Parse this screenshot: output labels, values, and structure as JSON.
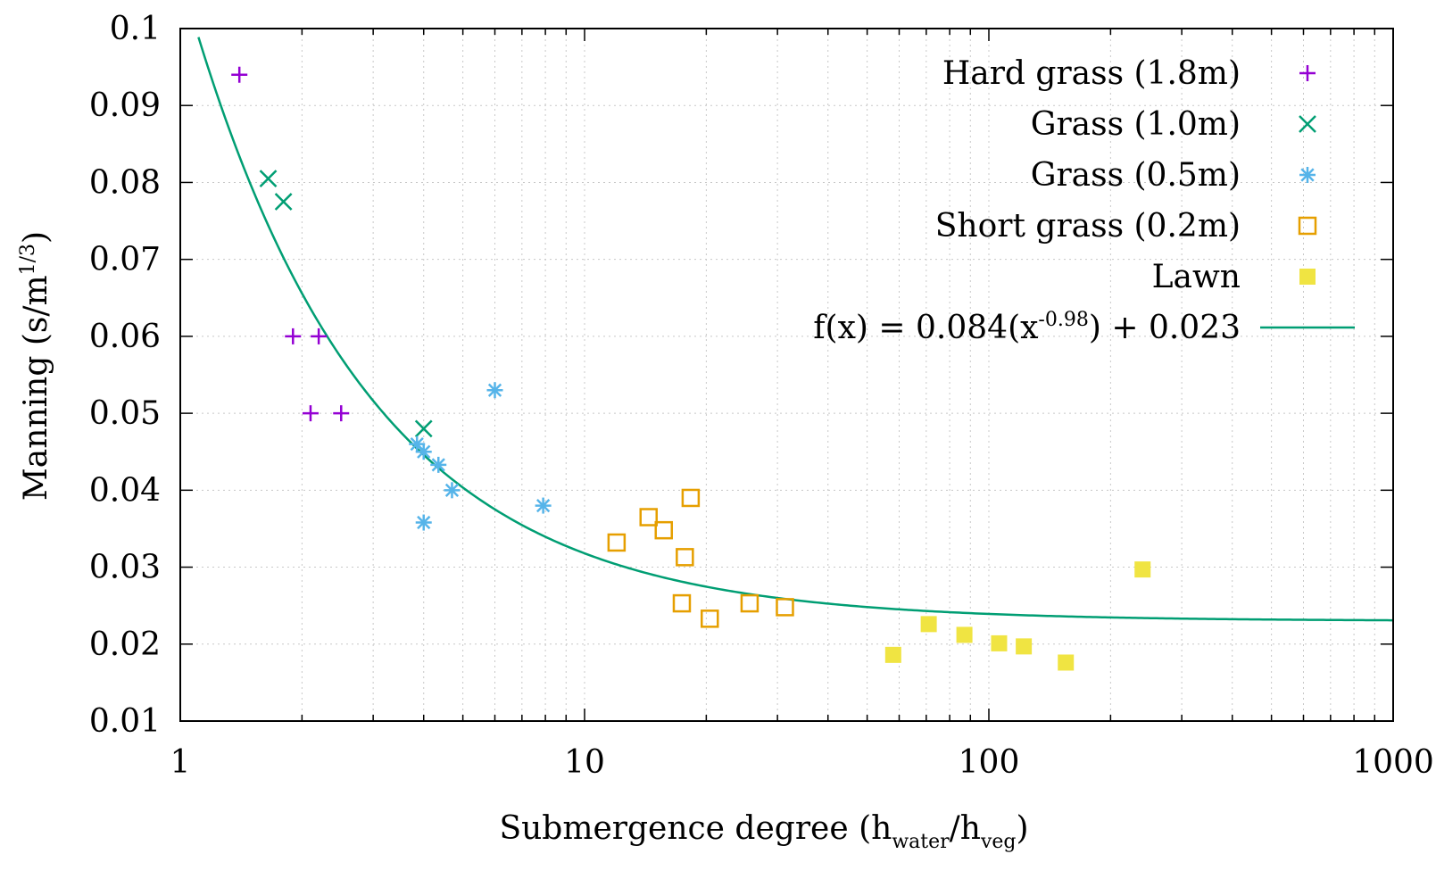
{
  "chart_data": {
    "type": "scatter",
    "title": "",
    "xscale": "log",
    "xlim": [
      1,
      1000
    ],
    "ylim": [
      0.01,
      0.1
    ],
    "xticks": [
      1,
      10,
      100,
      1000
    ],
    "xtick_labels": [
      "1",
      "10",
      "100",
      "1000"
    ],
    "yticks": [
      0.01,
      0.02,
      0.03,
      0.04,
      0.05,
      0.06,
      0.07,
      0.08,
      0.09,
      0.1
    ],
    "ytick_labels": [
      "0.01",
      "0.02",
      "0.03",
      "0.04",
      "0.05",
      "0.06",
      "0.07",
      "0.08",
      "0.09",
      "0.1"
    ],
    "xlabel": {
      "main": "Submergence degree (h",
      "sub1": "water",
      "mid": "/h",
      "sub2": "veg",
      "end": ")"
    },
    "ylabel": {
      "main": "Manning (s/m",
      "sup": "1/3",
      "end": ")"
    },
    "grid": true,
    "legend_position": "top-right",
    "series": [
      {
        "name": "Hard grass (1.8m)",
        "marker": "plus",
        "color": "#9400d3",
        "points": [
          [
            1.4,
            0.094
          ],
          [
            1.9,
            0.06
          ],
          [
            2.2,
            0.06
          ],
          [
            2.1,
            0.05
          ],
          [
            2.5,
            0.05
          ]
        ]
      },
      {
        "name": "Grass (1.0m)",
        "marker": "cross",
        "color": "#009e73",
        "points": [
          [
            1.65,
            0.0805
          ],
          [
            1.8,
            0.0775
          ],
          [
            4.0,
            0.048
          ]
        ]
      },
      {
        "name": "Grass (0.5m)",
        "marker": "star",
        "color": "#56b4e9",
        "points": [
          [
            3.85,
            0.046
          ],
          [
            4.0,
            0.045
          ],
          [
            4.35,
            0.0433
          ],
          [
            4.7,
            0.04
          ],
          [
            4.0,
            0.0358
          ],
          [
            6.0,
            0.053
          ],
          [
            7.9,
            0.038
          ]
        ]
      },
      {
        "name": "Short grass (0.2m)",
        "marker": "square-open",
        "color": "#e69f00",
        "points": [
          [
            12.0,
            0.0332
          ],
          [
            14.4,
            0.0365
          ],
          [
            15.7,
            0.0348
          ],
          [
            18.3,
            0.039
          ],
          [
            17.7,
            0.0313
          ],
          [
            17.4,
            0.0253
          ],
          [
            20.4,
            0.0233
          ],
          [
            25.6,
            0.0253
          ],
          [
            31.3,
            0.0248
          ]
        ]
      },
      {
        "name": "Lawn",
        "marker": "square-filled",
        "color": "#f0e442",
        "points": [
          [
            58.0,
            0.0186
          ],
          [
            71.0,
            0.0226
          ],
          [
            87.0,
            0.0212
          ],
          [
            106.0,
            0.0201
          ],
          [
            122.0,
            0.0197
          ],
          [
            155.0,
            0.0176
          ],
          [
            240.0,
            0.0297
          ]
        ]
      }
    ],
    "fit": {
      "label": {
        "main": "f(x) = 0.084(x",
        "sup": "-0.98",
        "end": ") + 0.023"
      },
      "a": 0.084,
      "b": -0.98,
      "c": 0.023,
      "color": "#009e73"
    }
  }
}
